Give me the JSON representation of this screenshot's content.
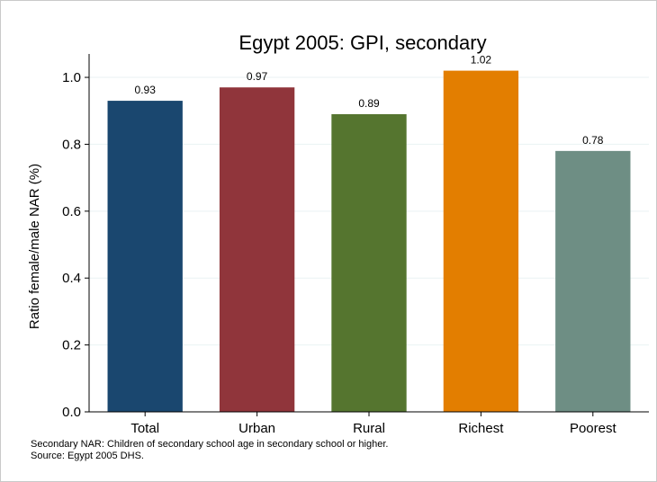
{
  "chart_data": {
    "type": "bar",
    "title": "Egypt 2005: GPI, secondary",
    "xlabel": "",
    "ylabel": "Ratio female/male NAR (%)",
    "categories": [
      "Total",
      "Urban",
      "Rural",
      "Richest",
      "Poorest"
    ],
    "values": [
      0.93,
      0.97,
      0.89,
      1.02,
      0.78
    ],
    "data_labels": [
      "0.93",
      "0.97",
      "0.89",
      "1.02",
      "0.78"
    ],
    "colors": [
      "#1a476f",
      "#90353b",
      "#55752f",
      "#e37e00",
      "#6e8e84"
    ],
    "ylim": [
      0,
      1.07
    ],
    "yticks": [
      0,
      0.2,
      0.4,
      0.6,
      0.8,
      1.0
    ],
    "ytick_labels": [
      "0.0",
      "0.2",
      "0.4",
      "0.6",
      "0.8",
      "1.0"
    ],
    "grid": true,
    "legend": "none"
  },
  "notes": {
    "line1": "Secondary NAR: Children of secondary school age in secondary school or higher.",
    "line2": "Source: Egypt 2005 DHS."
  }
}
